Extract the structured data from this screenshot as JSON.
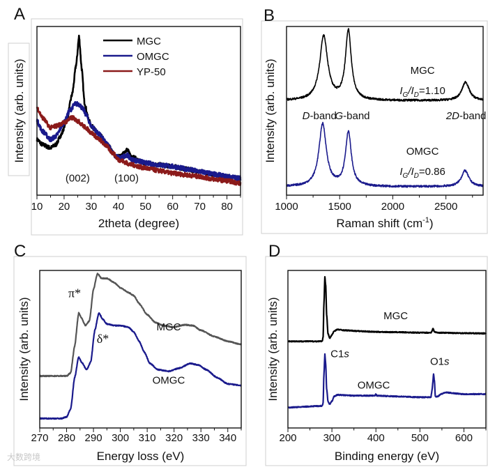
{
  "watermark": "大数跨境",
  "chart_data": [
    {
      "id": "A",
      "panel_label": "A",
      "type": "line",
      "xlabel": "2theta (degree)",
      "ylabel": "Intensity (arb. units)",
      "xlim": [
        10,
        85
      ],
      "ylim": [
        0,
        100
      ],
      "xticks": [
        10,
        20,
        30,
        40,
        50,
        60,
        70,
        80
      ],
      "minor_step": 5,
      "legend": {
        "placement": "top-right",
        "entries": [
          "MGC",
          "OMGC",
          "YP-50"
        ]
      },
      "annotations": [
        {
          "text": "(002)",
          "x": 25,
          "y": 8
        },
        {
          "text": "(100)",
          "x": 43,
          "y": 8
        }
      ],
      "series": [
        {
          "name": "MGC",
          "color": "#000000",
          "noise": 1.2,
          "points": [
            [
              10,
              33
            ],
            [
              12,
              30
            ],
            [
              15,
              28
            ],
            [
              17,
              30
            ],
            [
              19,
              36
            ],
            [
              21,
              45
            ],
            [
              23,
              60
            ],
            [
              24.5,
              78
            ],
            [
              25.5,
              94
            ],
            [
              26.5,
              75
            ],
            [
              27.5,
              55
            ],
            [
              29,
              45
            ],
            [
              30,
              41
            ],
            [
              33,
              36
            ],
            [
              36,
              30
            ],
            [
              39,
              23
            ],
            [
              41,
              23
            ],
            [
              43,
              27
            ],
            [
              45,
              23
            ],
            [
              48,
              20
            ],
            [
              50,
              19
            ],
            [
              55,
              18
            ],
            [
              60,
              17
            ],
            [
              65,
              15.5
            ],
            [
              70,
              14
            ],
            [
              75,
              12.5
            ],
            [
              80,
              11
            ],
            [
              85,
              10
            ]
          ]
        },
        {
          "name": "OMGC",
          "color": "#1a1a8c",
          "noise": 1.4,
          "points": [
            [
              10,
              44
            ],
            [
              12,
              38
            ],
            [
              15,
              33
            ],
            [
              17,
              35
            ],
            [
              20,
              43
            ],
            [
              22,
              50
            ],
            [
              24,
              54
            ],
            [
              25.5,
              54
            ],
            [
              27,
              51
            ],
            [
              28,
              48
            ],
            [
              30,
              41
            ],
            [
              33,
              36
            ],
            [
              36,
              30
            ],
            [
              39,
              23
            ],
            [
              41,
              22
            ],
            [
              43,
              24
            ],
            [
              45,
              21
            ],
            [
              48,
              20
            ],
            [
              50,
              19
            ],
            [
              55,
              18
            ],
            [
              60,
              17
            ],
            [
              65,
              15.5
            ],
            [
              70,
              14
            ],
            [
              75,
              12.5
            ],
            [
              80,
              11
            ],
            [
              85,
              10
            ]
          ]
        },
        {
          "name": "YP-50",
          "color": "#8b1a1a",
          "noise": 1.3,
          "points": [
            [
              10,
              52
            ],
            [
              12,
              46
            ],
            [
              15,
              40
            ],
            [
              17,
              41
            ],
            [
              20,
              43
            ],
            [
              23,
              46
            ],
            [
              25,
              44
            ],
            [
              28,
              40
            ],
            [
              30,
              37
            ],
            [
              33,
              33
            ],
            [
              35,
              30
            ],
            [
              38,
              25
            ],
            [
              40,
              21
            ],
            [
              45,
              18
            ],
            [
              50,
              16
            ],
            [
              55,
              14.5
            ],
            [
              60,
              13
            ],
            [
              65,
              12
            ],
            [
              70,
              11
            ],
            [
              75,
              9.5
            ],
            [
              80,
              8.5
            ],
            [
              85,
              7
            ]
          ]
        }
      ]
    },
    {
      "id": "B",
      "panel_label": "B",
      "type": "line",
      "xlabel": "Raman shift (cm",
      "xlabel_sup": "-1",
      "xlabel_end": ")",
      "ylabel": "Intensity (arb. units)",
      "xlim": [
        1000,
        2850
      ],
      "ylim": [
        0,
        100
      ],
      "xticks": [
        1000,
        1500,
        2000,
        2500
      ],
      "minor_step": 250,
      "annotations": [
        {
          "text": "MGC",
          "x": 2280,
          "y": 72
        },
        {
          "parts": [
            "I",
            "G",
            "/I",
            "D",
            "=1.10"
          ],
          "x": 2280,
          "y": 60
        },
        {
          "text": "D",
          "italic_suffix": "-band",
          "x": 1310,
          "y": 45
        },
        {
          "text": "G",
          "italic_suffix": "-band",
          "x": 1620,
          "y": 45
        },
        {
          "text": "2D",
          "italic_suffix": "-band",
          "x": 2690,
          "y": 45
        },
        {
          "text": "OMGC",
          "x": 2280,
          "y": 24
        },
        {
          "parts": [
            "I",
            "G",
            "/I",
            "D",
            "=0.86"
          ],
          "x": 2280,
          "y": 12
        }
      ],
      "series": [
        {
          "name": "MGC",
          "color": "#000000",
          "baseline": 56,
          "noise": 0.6,
          "peaks": [
            {
              "center": 1350,
              "height": 38,
              "width": 45
            },
            {
              "center": 1582,
              "height": 41,
              "width": 33
            },
            {
              "center": 2685,
              "height": 11,
              "width": 42
            }
          ]
        },
        {
          "name": "OMGC",
          "color": "#1a1a8c",
          "baseline": 5,
          "noise": 0.6,
          "peaks": [
            {
              "center": 1340,
              "height": 37,
              "width": 42
            },
            {
              "center": 1582,
              "height": 32,
              "width": 33
            },
            {
              "center": 2680,
              "height": 9.5,
              "width": 42
            }
          ]
        }
      ]
    },
    {
      "id": "C",
      "panel_label": "C",
      "type": "line",
      "xlabel": "Energy loss (eV)",
      "ylabel": "Intensity (arb. units)",
      "xlim": [
        270,
        345
      ],
      "ylim": [
        0,
        100
      ],
      "xticks": [
        270,
        280,
        290,
        300,
        310,
        320,
        330,
        340
      ],
      "minor_step": 5,
      "annotations": [
        {
          "text": "π*",
          "x": 283,
          "y": 83,
          "greek": true
        },
        {
          "text": "δ*",
          "x": 293.5,
          "y": 54,
          "greek": true
        },
        {
          "text": "MGC",
          "x": 318,
          "y": 62
        },
        {
          "text": "OMGC",
          "x": 318,
          "y": 28
        }
      ],
      "series": [
        {
          "name": "MGC",
          "color": "#555555",
          "noise": 0.3,
          "points": [
            [
              270,
              33
            ],
            [
              280,
              33
            ],
            [
              281.5,
              35
            ],
            [
              283,
              52
            ],
            [
              284.5,
              73
            ],
            [
              285.5,
              70
            ],
            [
              287,
              65
            ],
            [
              288.5,
              68
            ],
            [
              290,
              88
            ],
            [
              291.5,
              98
            ],
            [
              293,
              95
            ],
            [
              295,
              95
            ],
            [
              298,
              92
            ],
            [
              300,
              89
            ],
            [
              303,
              86
            ],
            [
              305,
              84
            ],
            [
              307,
              79
            ],
            [
              310,
              72
            ],
            [
              313,
              67
            ],
            [
              316,
              65
            ],
            [
              320,
              64
            ],
            [
              324,
              65.5
            ],
            [
              327,
              65
            ],
            [
              330,
              62
            ],
            [
              335,
              58
            ],
            [
              340,
              55
            ],
            [
              345,
              53
            ]
          ]
        },
        {
          "name": "OMGC",
          "color": "#1a1a8c",
          "noise": 0.3,
          "points": [
            [
              270,
              6
            ],
            [
              278,
              6
            ],
            [
              280,
              7
            ],
            [
              281.5,
              12
            ],
            [
              283,
              32
            ],
            [
              284.5,
              45
            ],
            [
              285.5,
              42
            ],
            [
              287.5,
              37
            ],
            [
              289,
              42
            ],
            [
              290.5,
              62
            ],
            [
              292,
              73
            ],
            [
              293.5,
              69
            ],
            [
              295,
              66
            ],
            [
              298,
              65
            ],
            [
              300,
              65
            ],
            [
              303,
              64
            ],
            [
              305,
              61
            ],
            [
              307,
              55
            ],
            [
              309,
              48
            ],
            [
              311,
              41
            ],
            [
              314,
              37
            ],
            [
              318,
              36
            ],
            [
              322,
              38
            ],
            [
              326,
              41
            ],
            [
              329,
              40
            ],
            [
              332,
              37
            ],
            [
              336,
              32
            ],
            [
              340,
              28
            ],
            [
              345,
              27
            ]
          ]
        }
      ]
    },
    {
      "id": "D",
      "panel_label": "D",
      "type": "line",
      "xlabel": "Binding energy (eV)",
      "ylabel": "Intensity (arb. units)",
      "xlim": [
        200,
        650
      ],
      "ylim": [
        0,
        100
      ],
      "xticks": [
        200,
        300,
        400,
        500,
        600
      ],
      "minor_step": 50,
      "annotations": [
        {
          "text": "MGC",
          "x": 445,
          "y": 69
        },
        {
          "text": "C1",
          "italic_suffix": "s",
          "x": 318,
          "y": 45
        },
        {
          "text": "OMGC",
          "x": 395,
          "y": 25
        },
        {
          "text": "O1",
          "italic_suffix": "s",
          "x": 545,
          "y": 40
        }
      ],
      "series": [
        {
          "name": "MGC",
          "color": "#000000",
          "noise": 0.3,
          "points": [
            [
              200,
              55
            ],
            [
              278,
              55
            ],
            [
              280,
              58
            ],
            [
              282,
              80
            ],
            [
              284,
              96
            ],
            [
              286,
              90
            ],
            [
              288,
              72
            ],
            [
              291,
              60
            ],
            [
              295,
              57
            ],
            [
              300,
              59
            ],
            [
              305,
              61.5
            ],
            [
              312,
              62.5
            ],
            [
              330,
              62
            ],
            [
              360,
              61.5
            ],
            [
              400,
              61
            ],
            [
              450,
              60.8
            ],
            [
              500,
              60.5
            ],
            [
              525,
              60.5
            ],
            [
              530,
              63
            ],
            [
              533,
              61
            ],
            [
              540,
              60.5
            ],
            [
              600,
              60.2
            ],
            [
              650,
              60
            ]
          ]
        },
        {
          "name": "OMGC",
          "color": "#1a1a8c",
          "noise": 0.3,
          "points": [
            [
              200,
              13
            ],
            [
              278,
              14
            ],
            [
              280,
              16
            ],
            [
              282,
              35
            ],
            [
              284,
              47
            ],
            [
              286,
              40
            ],
            [
              288,
              25
            ],
            [
              291,
              17
            ],
            [
              295,
              15
            ],
            [
              300,
              17
            ],
            [
              305,
              20
            ],
            [
              312,
              21
            ],
            [
              350,
              20.5
            ],
            [
              398,
              20.5
            ],
            [
              400,
              21.5
            ],
            [
              402,
              20.5
            ],
            [
              450,
              20
            ],
            [
              500,
              19.5
            ],
            [
              525,
              19.5
            ],
            [
              528,
              25
            ],
            [
              531,
              34
            ],
            [
              533,
              30
            ],
            [
              535,
              20
            ],
            [
              540,
              20
            ],
            [
              548,
              21.5
            ],
            [
              558,
              22.5
            ],
            [
              600,
              21.5
            ],
            [
              650,
              21.5
            ]
          ]
        }
      ]
    }
  ]
}
